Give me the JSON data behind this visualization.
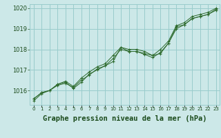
{
  "title": "Graphe pression niveau de la mer (hPa)",
  "x_values": [
    0,
    1,
    2,
    3,
    4,
    5,
    6,
    7,
    8,
    9,
    10,
    11,
    12,
    13,
    14,
    15,
    16,
    17,
    18,
    19,
    20,
    21,
    22,
    23
  ],
  "line1": [
    1015.6,
    1015.9,
    1016.0,
    1016.3,
    1016.4,
    1016.1,
    1016.4,
    1016.8,
    1017.0,
    1017.2,
    1017.4,
    1018.1,
    1017.9,
    1017.9,
    1017.8,
    1017.7,
    1017.8,
    1018.3,
    1019.1,
    1019.2,
    1019.5,
    1019.6,
    1019.7,
    1019.9
  ],
  "line2": [
    1015.6,
    1015.9,
    1016.0,
    1016.3,
    1016.45,
    1016.2,
    1016.6,
    1016.9,
    1017.15,
    1017.3,
    1017.7,
    1018.1,
    1018.0,
    1018.0,
    1017.9,
    1017.7,
    1018.0,
    1018.4,
    1019.15,
    1019.3,
    1019.6,
    1019.7,
    1019.8,
    1020.0
  ],
  "line3": [
    1015.5,
    1015.85,
    1016.0,
    1016.25,
    1016.35,
    1016.15,
    1016.5,
    1016.75,
    1017.05,
    1017.2,
    1017.55,
    1018.0,
    1017.9,
    1017.9,
    1017.75,
    1017.6,
    1017.85,
    1018.3,
    1019.0,
    1019.2,
    1019.5,
    1019.6,
    1019.7,
    1019.95
  ],
  "line_color": "#2d6a2d",
  "marker_color": "#2d6a2d",
  "bg_color": "#cce8e8",
  "grid_color": "#99cccc",
  "text_color": "#1a4a1a",
  "ylim_min": 1015.3,
  "ylim_max": 1020.2,
  "yticks": [
    1016,
    1017,
    1018,
    1019,
    1020
  ],
  "title_fontsize": 7.5
}
